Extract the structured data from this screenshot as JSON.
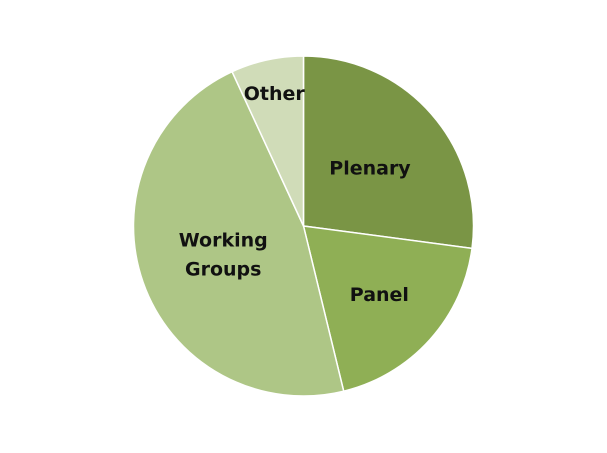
{
  "chart_data": {
    "type": "pie",
    "title": "",
    "start_angle_deg": 0,
    "direction": "clockwise",
    "slices": [
      {
        "label": "Plenary",
        "value": 27.1,
        "color": "#7a9545"
      },
      {
        "label": "Panel",
        "value": 19.1,
        "color": "#8faf55"
      },
      {
        "label": "Working Groups",
        "value": 46.9,
        "color": "#aec686"
      },
      {
        "label": "Other",
        "value": 6.9,
        "color": "#d0dcb8"
      }
    ]
  }
}
